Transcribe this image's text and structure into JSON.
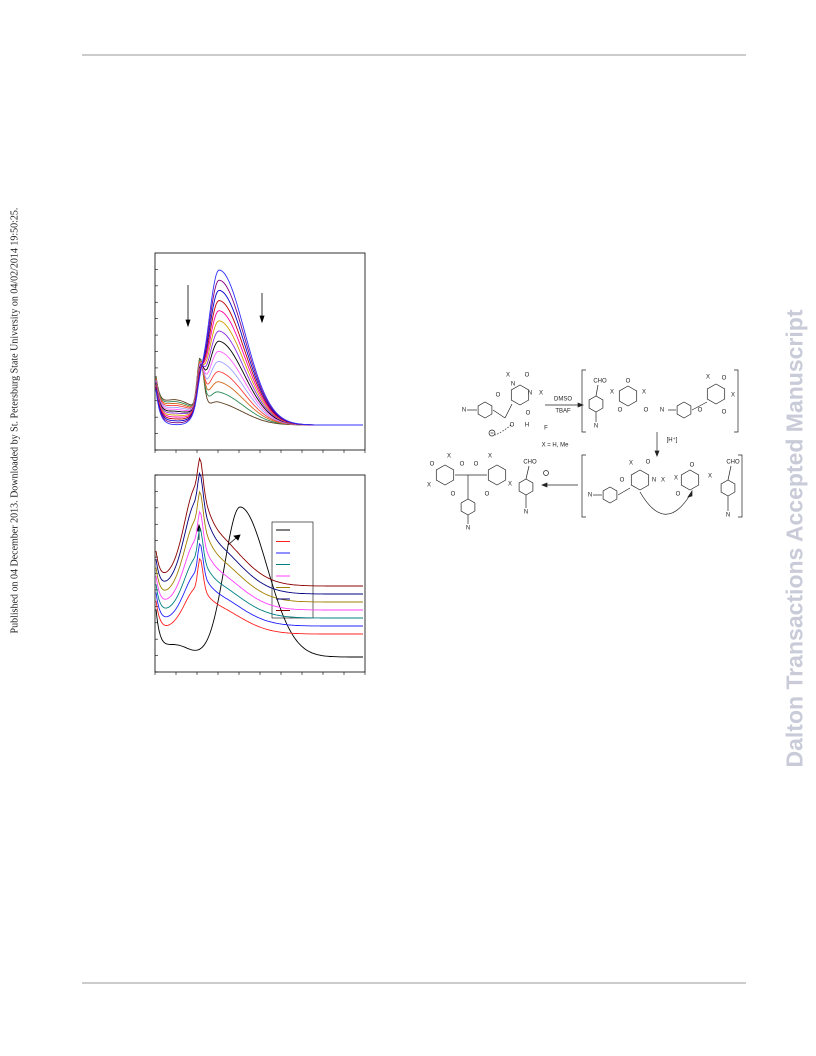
{
  "sidebar": {
    "publication_note": "Published on 04 December 2013. Downloaded by St. Petersburg State University on 04/02/2014 19:50:25.",
    "watermark": "Dalton Transactions Accepted Manuscript"
  },
  "scheme": {
    "reagent_top": "DMSO",
    "reagent_bottom": "TBAF",
    "substituent": "X = H, Me",
    "acid": "[H⁺]",
    "cho": "CHO",
    "o": "O",
    "n": "N",
    "x": "X",
    "f": "F",
    "h": "H"
  }
}
